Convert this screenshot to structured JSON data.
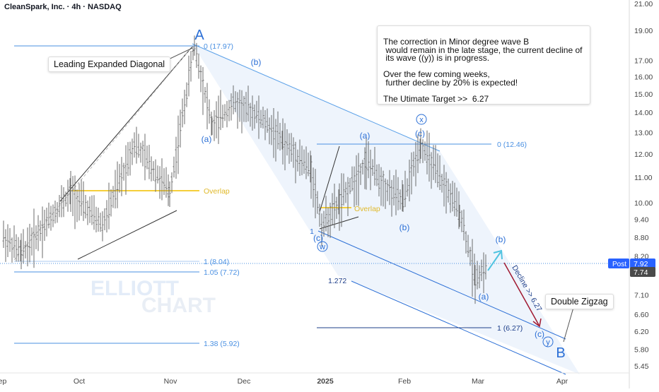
{
  "header": {
    "symbol_title": "CleanSpark, Inc. · 4h · NASDAQ"
  },
  "watermark": {
    "line1": "ELLIOTT",
    "line2": "CHART"
  },
  "notes": {
    "main": [
      "The correction in Minor degree wave B",
      " would remain in the late stage, the current decline of",
      " its wave ((y)) is in progress.",
      "",
      "Over the few coming weeks,",
      " further decline by 20% is expected!",
      "",
      "The Utimate Target >>  6.27"
    ],
    "leading": "Leading Expanded Diagonal",
    "double_zigzag": "Double Zigzag"
  },
  "post_tag": {
    "label": "Post",
    "value": "7.92",
    "sub_value": "7.74"
  },
  "colors": {
    "wave": "#2b6fd6",
    "fib": "#4a90e2",
    "overlap": "#f5cf3a",
    "channel_fill": "#e8f0fb",
    "arrow_up": "#4fc3e0",
    "arrow_down": "#a01830",
    "candle": "#6b6b6b"
  },
  "chart_data": {
    "type": "line",
    "title": "CleanSpark, Inc. · 4h · NASDAQ",
    "xlabel": "",
    "ylabel": "",
    "scale": "log",
    "ylim": [
      5.2,
      21.0
    ],
    "y_ticks": [
      "21.00",
      "19.00",
      "17.00",
      "16.00",
      "15.00",
      "14.00",
      "13.00",
      "12.00",
      "11.00",
      "10.00",
      "9.40",
      "8.80",
      "8.20",
      "7.74",
      "7.10",
      "6.60",
      "6.20",
      "5.80",
      "5.45"
    ],
    "x_ticks": [
      "Sep",
      "Oct",
      "Nov",
      "Dec",
      "2025",
      "Feb",
      "Mar",
      "Apr"
    ],
    "series": [
      {
        "x": [
          "Sep 10",
          "Sep 20",
          "Oct 01",
          "Oct 10",
          "Oct 20",
          "Oct 30",
          "Nov 06",
          "Nov 12",
          "Nov 20",
          "Dec 01",
          "Dec 10",
          "Dec 20",
          "Dec 31",
          "Jan 08",
          "Jan 15",
          "Jan 22",
          "Jan 28",
          "Feb 04",
          "Feb 12",
          "Feb 20",
          "Feb 26",
          "Mar 03"
        ],
        "values": [
          8.8,
          8.3,
          10.4,
          9.2,
          12.5,
          10.4,
          17.97,
          13.3,
          14.5,
          14.0,
          12.6,
          11.3,
          9.2,
          10.0,
          11.7,
          10.6,
          10.1,
          12.46,
          10.8,
          9.7,
          7.6,
          7.9
        ]
      }
    ],
    "fib_levels": [
      {
        "label": "0 (17.97)",
        "value": 17.97
      },
      {
        "label": "1 (8.04)",
        "value": 8.04
      },
      {
        "label": "1.05 (7.72)",
        "value": 7.72
      },
      {
        "label": "1.38 (5.92)",
        "value": 5.92
      },
      {
        "label": "0 (12.46)",
        "value": 12.46
      },
      {
        "label": "1 (6.27)",
        "value": 6.27
      },
      {
        "label": "1.272",
        "value": null
      }
    ],
    "overlap_labels": [
      "Overlap",
      "Overlap"
    ],
    "wave_labels": [
      "A",
      "B",
      "(a)",
      "(b)",
      "(c)",
      "(a)",
      "(b)",
      "(c)",
      "(a)",
      "(b)",
      "(c)",
      "1",
      "x",
      "w",
      "y"
    ],
    "projection_label": "Decline >> 6.27",
    "current_price": 7.92
  }
}
